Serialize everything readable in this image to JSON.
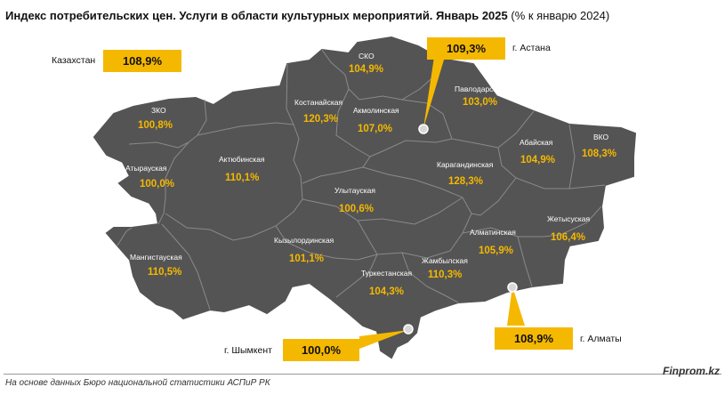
{
  "header": {
    "title_main": "Индекс потребительских цен. Услуги в области культурных мероприятий. Январь 2025",
    "title_suffix": "(% к январю 2024)"
  },
  "callouts": {
    "kazakhstan": {
      "label": "Казахстан",
      "value": "108,9%"
    },
    "astana": {
      "label": "г. Астана",
      "value": "109,3%"
    },
    "shymkent": {
      "label": "г. Шымкент",
      "value": "100,0%"
    },
    "almaty": {
      "label": "г. Алматы",
      "value": "108,9%"
    }
  },
  "regions": {
    "sko": {
      "name": "СКО",
      "value": "104,9%"
    },
    "pavlodar": {
      "name": "Павлодарская",
      "value": "103,0%"
    },
    "kostanay": {
      "name": "Костанайская",
      "value": "120,3%"
    },
    "akmola": {
      "name": "Акмолинская",
      "value": "107,0%"
    },
    "zko": {
      "name": "ЗКО",
      "value": "100,8%"
    },
    "vko": {
      "name": "ВКО",
      "value": "108,3%"
    },
    "abay": {
      "name": "Абайская",
      "value": "104,9%"
    },
    "aktobe": {
      "name": "Актюбинская",
      "value": "110,1%"
    },
    "atyrau": {
      "name": "Атырауская",
      "value": "100,0%"
    },
    "karaganda": {
      "name": "Карагандинская",
      "value": "128,3%"
    },
    "ulytau": {
      "name": "Улытауская",
      "value": "100,6%"
    },
    "zhetysu": {
      "name": "Жетысуская",
      "value": "106,4%"
    },
    "almaty_reg": {
      "name": "Алматинская",
      "value": "105,9%"
    },
    "mangystau": {
      "name": "Мангистауская",
      "value": "110,5%"
    },
    "kyzylorda": {
      "name": "Кызылординская",
      "value": "101,1%"
    },
    "zhambyl": {
      "name": "Жамбылская",
      "value": "110,3%"
    },
    "turkestan": {
      "name": "Туркестанская",
      "value": "104,3%"
    }
  },
  "footer": {
    "source": "На основе данных Бюро национальной статистики АСПиР РК",
    "brand": "Finprom.kz"
  },
  "colors": {
    "map_fill": "#545454",
    "accent": "#f5b800",
    "borders": "#8a8a8a"
  }
}
